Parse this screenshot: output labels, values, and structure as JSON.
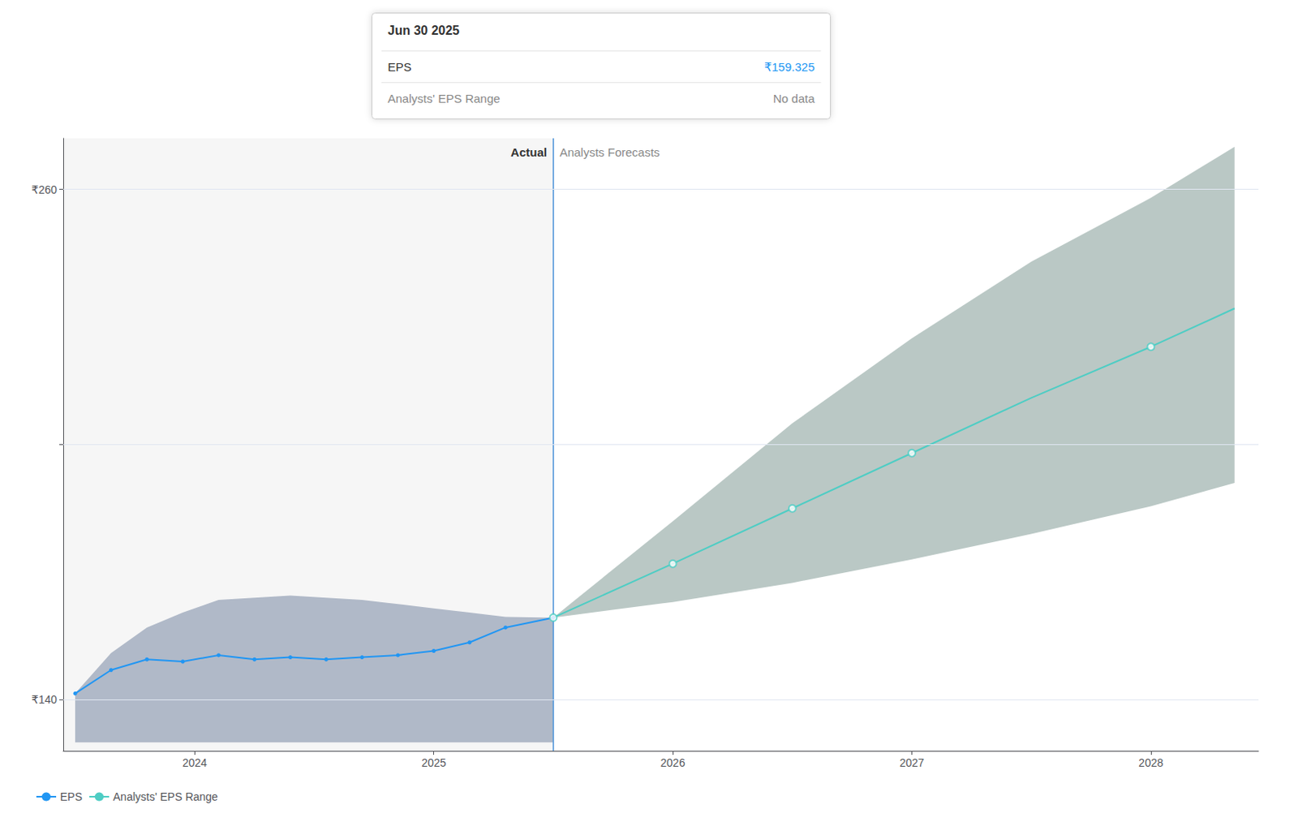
{
  "chart_data": {
    "type": "line",
    "xlim": [
      2023.45,
      2028.45
    ],
    "xticks": [
      2024,
      2025,
      2026,
      2027,
      2028
    ],
    "ylim": [
      128,
      272
    ],
    "yticks": [
      {
        "value": 140,
        "label": "₹140"
      },
      {
        "value": 200,
        "label": null
      },
      {
        "value": 260,
        "label": "₹260"
      }
    ],
    "grid": true,
    "legend": "lower left",
    "divider": {
      "x": 2025.5,
      "color": "#4a90d9",
      "left_label": "Actual",
      "right_label": "Analysts Forecasts"
    },
    "tooltip": {
      "title": "Jun 30 2025",
      "rows": [
        {
          "label": "EPS",
          "value": "₹159.325"
        },
        {
          "label": "Analysts' EPS Range",
          "value": "No data"
        }
      ]
    },
    "series": [
      {
        "name": "EPS",
        "color": "#2196f3",
        "marker": "circle",
        "x": [
          2023.5,
          2023.65,
          2023.8,
          2023.95,
          2024.1,
          2024.25,
          2024.4,
          2024.55,
          2024.7,
          2024.85,
          2025.0,
          2025.15,
          2025.3,
          2025.5
        ],
        "values": [
          141.5,
          147.0,
          149.5,
          149.0,
          150.5,
          149.5,
          150.0,
          149.5,
          150.0,
          150.5,
          151.5,
          153.5,
          157.0,
          159.325
        ],
        "band_lower": [
          130,
          130,
          130,
          130,
          130,
          130,
          130,
          130,
          130,
          130,
          130,
          130,
          130,
          130
        ],
        "band_upper": [
          141.5,
          151.0,
          157.0,
          160.5,
          163.5,
          164.0,
          164.5,
          164.0,
          163.5,
          162.5,
          161.5,
          160.5,
          159.5,
          159.325
        ],
        "band_color": "#0d2b5e"
      },
      {
        "name": "Analysts' EPS Range",
        "color": "#4ecdc4",
        "marker": "none",
        "x": [
          2025.5,
          2026.0,
          2026.5,
          2027.0,
          2027.5,
          2028.0,
          2028.35
        ],
        "values": [
          159.325,
          172.0,
          185.0,
          198.0,
          211.0,
          223.0,
          232.0
        ],
        "band_lower": [
          159.325,
          163.0,
          167.5,
          173.0,
          179.0,
          185.5,
          191.0
        ],
        "band_upper": [
          159.325,
          182.0,
          205.0,
          225.0,
          243.0,
          258.0,
          270.0
        ],
        "band_color": "#1a4a40",
        "dot_x": [
          2025.5,
          2026.0,
          2026.5,
          2027.0,
          2028.0
        ],
        "dot_values": [
          159.325,
          172.0,
          185.0,
          198.0,
          223.0
        ]
      }
    ]
  }
}
